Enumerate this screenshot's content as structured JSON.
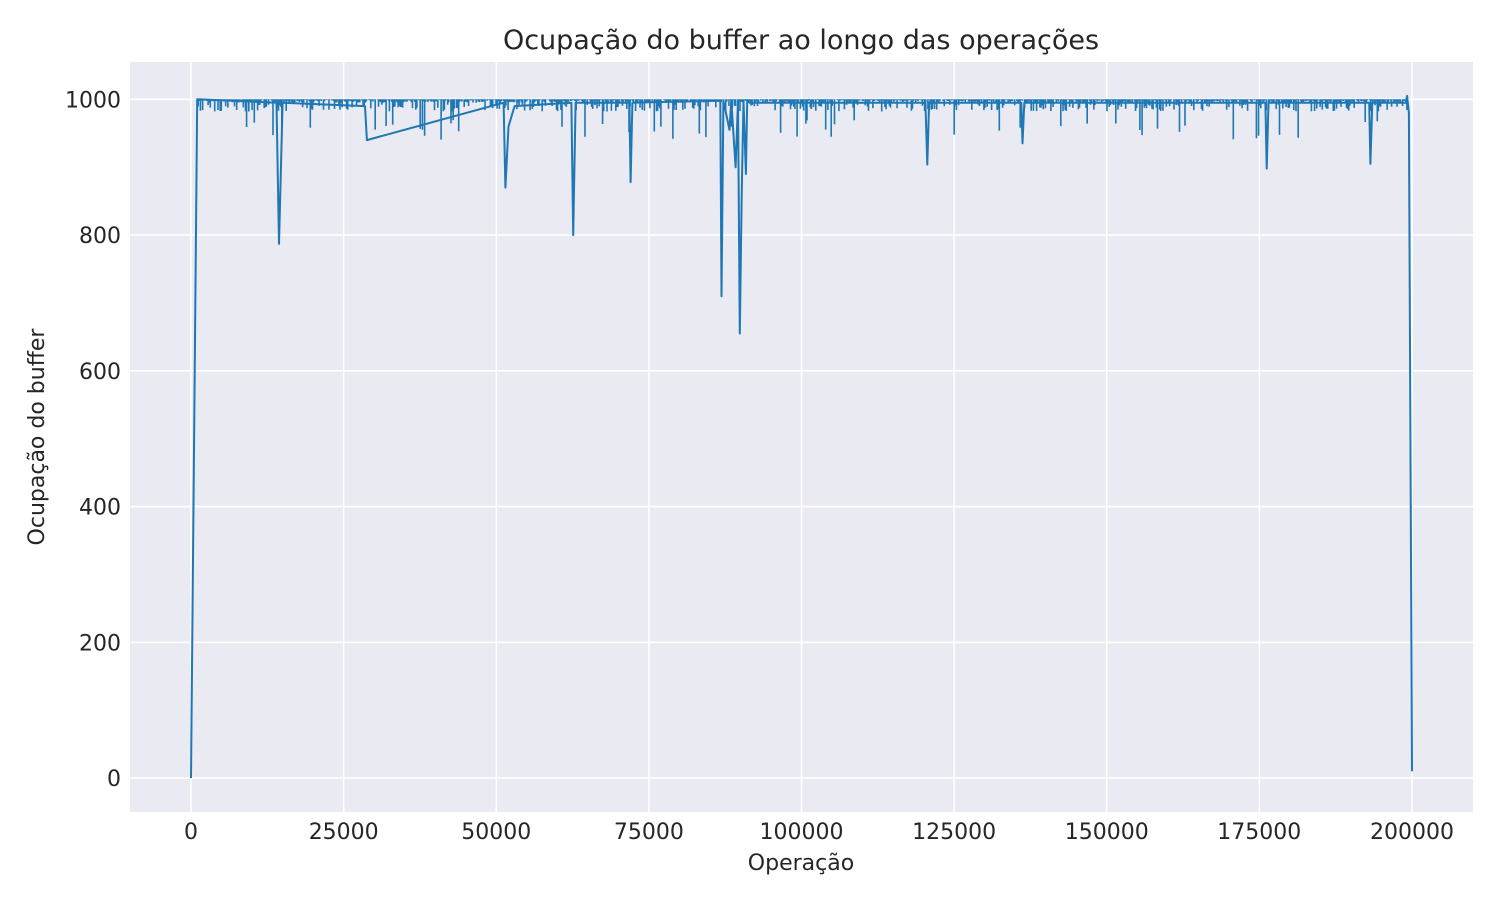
{
  "chart_data": {
    "type": "line",
    "title": "Ocupação do buffer ao longo das operações",
    "xlabel": "Operação",
    "ylabel": "Ocupação do buffer",
    "xlim": [
      -10000,
      210000
    ],
    "ylim": [
      -50,
      1055
    ],
    "xticks": [
      0,
      25000,
      50000,
      75000,
      100000,
      125000,
      150000,
      175000,
      200000
    ],
    "yticks": [
      0,
      200,
      400,
      600,
      800,
      1000
    ],
    "grid": true,
    "legend": "none",
    "colors": {
      "series": "#1f77b4",
      "background": "#eaeaf2",
      "grid": "#ffffff"
    },
    "series": [
      {
        "x": [
          0,
          1000,
          14000,
          14400,
          15000,
          28500,
          28800,
          51200,
          51500,
          52000,
          53000,
          62300,
          62600,
          63000,
          71800,
          72000,
          72300,
          86700,
          86900,
          87200,
          88200,
          88500,
          89200,
          89600,
          89900,
          90200,
          90500,
          90900,
          91100,
          91500,
          120300,
          120600,
          120900,
          136000,
          136200,
          136500,
          176000,
          176200,
          176500,
          193000,
          193200,
          193500,
          199000,
          199200,
          199500,
          200000
        ],
        "y": [
          0,
          1000,
          995,
          787,
          995,
          990,
          940,
          995,
          870,
          960,
          990,
          995,
          800,
          995,
          995,
          878,
          995,
          998,
          710,
          998,
          955,
          998,
          900,
          998,
          655,
          860,
          998,
          890,
          998,
          995,
          995,
          904,
          995,
          995,
          935,
          995,
          995,
          898,
          995,
          995,
          905,
          995,
          995,
          1005,
          980,
          10
        ]
      }
    ]
  }
}
